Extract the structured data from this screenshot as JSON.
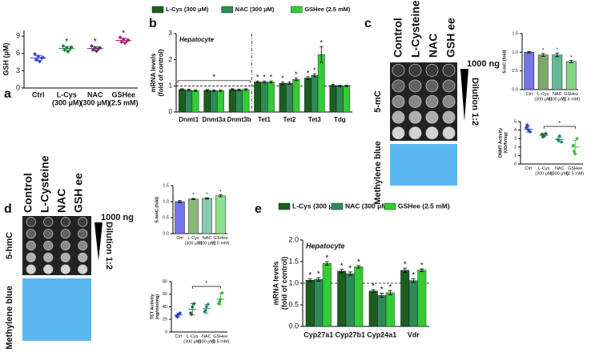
{
  "panel_labels": [
    "a",
    "b",
    "c",
    "d",
    "e"
  ],
  "blots": [
    {
      "columns": [
        "Control",
        "L-Cysteine",
        "NAC",
        "GSH ee"
      ],
      "row_label": "5-mC",
      "amount": "1000 ng",
      "dilution": "Dilution 1:2",
      "stain": "Methylene blue"
    },
    {
      "columns": [
        "Control",
        "L-Cysteine",
        "NAC",
        "GSH ee"
      ],
      "row_label": "5-hmC",
      "amount": "1000 ng",
      "dilution": "Dilution 1:2",
      "stain": "Methylene blue"
    }
  ],
  "chart_data": [
    {
      "type": "dot",
      "ylabel": [
        "GSH (μM)"
      ],
      "ylim": [
        0,
        10
      ],
      "yticks": [
        0,
        3,
        6,
        9
      ],
      "categories": [
        [
          "Ctrl"
        ],
        [
          "L-Cys",
          "(300 μM)"
        ],
        [
          "NAC",
          "(300 μM)"
        ],
        [
          "GSHee",
          "(2.5 mM)"
        ]
      ],
      "colors": [
        "#2b3fd0",
        "#1f7f3a",
        "#6a2b6a",
        "#b0206e"
      ],
      "values": [
        5.2,
        6.85,
        6.85,
        8.27
      ],
      "errors": [
        0.45,
        0.35,
        0.33,
        0.35
      ],
      "points": [
        [
          5.9,
          5.5,
          5.2,
          4.9,
          4.6,
          5.3
        ],
        [
          7.3,
          7.0,
          6.8,
          6.6,
          6.3,
          7.1
        ],
        [
          7.3,
          7.0,
          6.8,
          6.6,
          6.4,
          7.0
        ],
        [
          8.8,
          8.5,
          8.2,
          8.0,
          7.8,
          8.3
        ]
      ],
      "stars": [
        null,
        "*",
        "*",
        "*"
      ]
    },
    {
      "type": "grouped_bar",
      "ylabel": [
        "mRNA levels",
        "(fold of control)"
      ],
      "annotation": "Hepatocyte",
      "bracket_label": "*",
      "ylim": [
        0,
        3
      ],
      "yticks": [
        0,
        1,
        2,
        3
      ],
      "refline": 1,
      "categories": [
        "Dnmt1",
        "Dnmt3a",
        "Dnmt3b",
        "Tet1",
        "Tet2",
        "Tet3",
        "Tdg"
      ],
      "series": [
        {
          "name": "L-Cys (300 μM)",
          "color": "#1b5e20",
          "values": [
            0.86,
            0.83,
            0.86,
            1.15,
            1.1,
            1.3,
            1.02
          ],
          "errors": [
            0.03,
            0.03,
            0.03,
            0.04,
            0.04,
            0.05,
            0.03
          ],
          "stars": [
            null,
            null,
            null,
            "*",
            "*",
            "*",
            null
          ]
        },
        {
          "name": "NAC (300 μM)",
          "color": "#2e8b57",
          "values": [
            0.84,
            0.82,
            0.85,
            1.15,
            1.1,
            1.4,
            1.0
          ],
          "errors": [
            0.03,
            0.03,
            0.03,
            0.04,
            0.04,
            0.05,
            0.03
          ],
          "stars": [
            null,
            null,
            null,
            "*",
            null,
            "*",
            null
          ]
        },
        {
          "name": "GSHee (2.5 mM)",
          "color": "#33cc33",
          "values": [
            0.82,
            0.81,
            0.86,
            1.15,
            1.25,
            2.2,
            1.0
          ],
          "errors": [
            0.03,
            0.03,
            0.03,
            0.04,
            0.05,
            0.3,
            0.03
          ],
          "stars": [
            null,
            null,
            null,
            "*",
            "*",
            "*",
            null
          ]
        }
      ]
    },
    {
      "type": "bar",
      "ylabel": [
        "5-mC (fold)"
      ],
      "ylim": [
        0,
        1.5
      ],
      "yticks": [
        {
          "value": 0,
          "label": "0.0"
        },
        {
          "value": 0.5,
          "label": "0.5"
        },
        {
          "value": 1,
          "label": "1.0"
        },
        {
          "value": 1.5,
          "label": "1.5"
        }
      ],
      "categories": [
        [
          "Ctrl"
        ],
        [
          "L-Cys",
          "(300 μM)"
        ],
        [
          "NAC",
          "(300 μM)"
        ],
        [
          "GSHee",
          "(2.5 mM)"
        ]
      ],
      "colors": [
        "#7474e8",
        "#7ea86a",
        "#66b896",
        "#86d486"
      ],
      "values": [
        1.0,
        0.93,
        0.93,
        0.75
      ],
      "errors": [
        0.02,
        0.04,
        0.05,
        0.03
      ],
      "stars": [
        null,
        "*",
        "*",
        "*"
      ]
    },
    {
      "type": "dot",
      "ylabel": [
        "DNMT Activity",
        "(OD/h/mg)"
      ],
      "ylim": [
        0,
        5
      ],
      "yticks": [
        0,
        1,
        2,
        3,
        4,
        5
      ],
      "bracket_label": "*",
      "categories": [
        [
          "Ctrl"
        ],
        [
          "L-Cys",
          "(300 μM)"
        ],
        [
          "NAC",
          "(300 μM)"
        ],
        [
          "GSHee",
          "(2.5 mM)"
        ]
      ],
      "colors": [
        "#3046c8",
        "#1c6b3a",
        "#2a8a6a",
        "#3cbf3c"
      ],
      "values": [
        4.1,
        3.4,
        2.9,
        2.0
      ],
      "errors": [
        0.35,
        0.2,
        0.3,
        0.8
      ],
      "points": [
        [
          4.3,
          4.0,
          3.8,
          4.6
        ],
        [
          3.5,
          3.3,
          3.6,
          3.2
        ],
        [
          2.9,
          3.3,
          2.6,
          2.8
        ],
        [
          2.2,
          1.2,
          3.0,
          1.5
        ]
      ],
      "stars": [
        null,
        null,
        null,
        null
      ]
    },
    {
      "type": "bar",
      "ylabel": [
        "5-hmC (fold)"
      ],
      "ylim": [
        0,
        1.5
      ],
      "yticks": [
        {
          "value": 0,
          "label": "0.0"
        },
        {
          "value": 0.5,
          "label": "0.5"
        },
        {
          "value": 1,
          "label": "1.0"
        },
        {
          "value": 1.5,
          "label": "1.5"
        }
      ],
      "categories": [
        [
          "Ctrl"
        ],
        [
          "L-Cys",
          "(300 μM)"
        ],
        [
          "NAC",
          "(300 μM)"
        ],
        [
          "GSHee",
          "(2.5 mM)"
        ]
      ],
      "colors": [
        "#7474e8",
        "#8ab87a",
        "#86ccb0",
        "#8ee08e"
      ],
      "values": [
        1.0,
        1.08,
        1.1,
        1.18
      ],
      "errors": [
        0.03,
        0.02,
        0.02,
        0.03
      ],
      "stars": [
        null,
        "*",
        "*",
        "*"
      ]
    },
    {
      "type": "dot",
      "ylabel": [
        "TET Activity",
        "(ng/min/mg)"
      ],
      "ylim": [
        0,
        80
      ],
      "yticks": [
        0,
        20,
        40,
        60,
        80
      ],
      "bracket_label": "*",
      "categories": [
        [
          "Ctrl"
        ],
        [
          "L-Cys",
          "(300 μM)"
        ],
        [
          "NAC",
          "(300 μM)"
        ],
        [
          "GSHee",
          "(2.5 mM)"
        ]
      ],
      "colors": [
        "#2a40c0",
        "#1c6b3a",
        "#2a8a6a",
        "#33bb33"
      ],
      "values": [
        27,
        36,
        37,
        52
      ],
      "errors": [
        3,
        9,
        7,
        9
      ],
      "points": [
        [
          25,
          28,
          30,
          24
        ],
        [
          30,
          40,
          45,
          28
        ],
        [
          32,
          40,
          44,
          34
        ],
        [
          45,
          52,
          62,
          48
        ]
      ],
      "stars": [
        null,
        null,
        null,
        null
      ]
    },
    {
      "type": "grouped_bar",
      "ylabel": [
        "mRNA levels",
        "(fold of control)"
      ],
      "annotation": "Hepatocyte",
      "ylim": [
        0,
        2
      ],
      "refline": 1,
      "yticks": [
        {
          "value": 0,
          "label": "0.0"
        },
        {
          "value": 0.5,
          "label": "0.5"
        },
        {
          "value": 1,
          "label": "1.0"
        },
        {
          "value": 1.5,
          "label": "1.5"
        },
        {
          "value": 2,
          "label": "2.0"
        }
      ],
      "categories": [
        "Cyp27a1",
        "Cyp27b1",
        "Cyp24a1",
        "Vdr"
      ],
      "series": [
        {
          "name": "L-Cys (300 μM)",
          "color": "#1b5e20",
          "values": [
            1.07,
            1.28,
            0.82,
            1.3
          ],
          "errors": [
            0.03,
            0.04,
            0.03,
            0.05
          ],
          "stars": [
            "*",
            "*",
            "*",
            "*"
          ]
        },
        {
          "name": "NAC (300 μM)",
          "color": "#2e8b57",
          "values": [
            1.09,
            1.22,
            0.72,
            1.06
          ],
          "errors": [
            0.04,
            0.04,
            0.05,
            0.04
          ],
          "stars": [
            "*",
            "*",
            "*",
            "*"
          ]
        },
        {
          "name": "GSHee (2.5 mM)",
          "color": "#33cc33",
          "values": [
            1.46,
            1.38,
            0.78,
            1.3
          ],
          "errors": [
            0.04,
            0.03,
            0.05,
            0.03
          ],
          "stars": [
            "*",
            "*",
            "*",
            "*"
          ]
        }
      ]
    }
  ]
}
